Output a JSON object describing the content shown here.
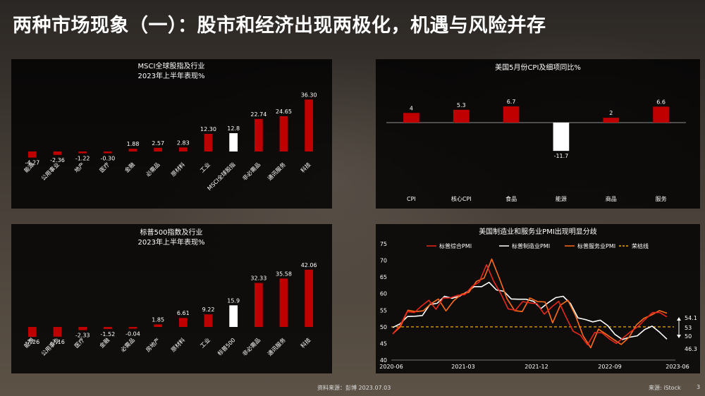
{
  "page": {
    "title": "两种市场现象（一）：股市和经济出现两极化，机遇与风险并存",
    "source_left": "资料来源：彭博 2023.07.03",
    "source_right": "来源: iStock",
    "page_number": "3"
  },
  "colors": {
    "bar": "#c00000",
    "highlight": "#ffffff",
    "series_red": "#e8261c",
    "series_white": "#ffffff",
    "series_orange": "#ff6b1a",
    "threshold": "#f0a800"
  },
  "chart_data": [
    {
      "type": "bar",
      "title": "MSCI全球股指及行业",
      "subtitle": "2023年上半年表现%",
      "categories": [
        "能源",
        "公用事业",
        "地产",
        "医疗",
        "金融",
        "必需品",
        "原材料",
        "工业",
        "MSCI全球股指",
        "非必需品",
        "通讯服务",
        "科技"
      ],
      "values": [
        -4.27,
        -2.36,
        -1.22,
        -0.3,
        1.88,
        2.57,
        2.83,
        12.3,
        12.8,
        22.74,
        24.65,
        36.3
      ],
      "value_labels": [
        "-4.27",
        "-2.36",
        "-1.22",
        "-0.30",
        "1.88",
        "2.57",
        "2.83",
        "12.30",
        "12.8",
        "22.74",
        "24.65",
        "36.30"
      ],
      "highlight_category": "MSCI全球股指"
    },
    {
      "type": "bar",
      "title": "美国5月份CPI及细项同比%",
      "categories": [
        "CPI",
        "核心CPI",
        "食品",
        "能源",
        "商品",
        "服务"
      ],
      "values": [
        4,
        5.3,
        6.7,
        -11.7,
        2,
        6.6
      ],
      "value_labels": [
        "4",
        "5.3",
        "6.7",
        "-11.7",
        "2",
        "6.6"
      ],
      "highlight_category": "能源"
    },
    {
      "type": "bar",
      "title": "标普500指数及行业",
      "subtitle": "2023年上半年表现%",
      "categories": [
        "能源",
        "公用事业",
        "医疗",
        "金融",
        "必需品",
        "房地产",
        "原材料",
        "工业",
        "标普500",
        "非必需品",
        "通讯服务",
        "科技"
      ],
      "values": [
        -7.26,
        -7.16,
        -2.33,
        -1.52,
        -0.04,
        1.85,
        6.61,
        9.22,
        15.9,
        32.33,
        35.58,
        42.06
      ],
      "value_labels": [
        "-7.26",
        "-7.16",
        "-2.33",
        "-1.52",
        "-0.04",
        "1.85",
        "6.61",
        "9.22",
        "15.9",
        "32.33",
        "35.58",
        "42.06"
      ],
      "highlight_category": "标普500"
    },
    {
      "type": "line",
      "title": "美国制造业和服务业PMI出现明显分歧",
      "x_ticks": [
        "2020-06",
        "2021-03",
        "2021-12",
        "2022-09",
        "2023-06"
      ],
      "ylim": [
        40,
        75
      ],
      "y_ticks": [
        40,
        45,
        50,
        55,
        60,
        65,
        70,
        75
      ],
      "series": [
        {
          "name": "标普综合PMI",
          "color": "#e8261c",
          "values": [
            47.9,
            50.3,
            54.6,
            54.3,
            56.3,
            58.0,
            55.3,
            58.7,
            58.7,
            59.5,
            59.7,
            62.2,
            63.5,
            68.7,
            63.7,
            59.9,
            55.4,
            55.0,
            57.6,
            57.2,
            57.0,
            53.8,
            55.9,
            57.7,
            53.0,
            48.7,
            47.5,
            44.6,
            48.3,
            48.2,
            46.4,
            45.0,
            46.8,
            48.6,
            50.1,
            52.3,
            54.3,
            54.3,
            53.0
          ]
        },
        {
          "name": "标普制造业PMI",
          "color": "#ffffff",
          "values": [
            49.8,
            50.9,
            53.1,
            53.2,
            53.4,
            56.7,
            57.1,
            59.2,
            58.6,
            59.2,
            60.5,
            62.1,
            62.1,
            63.4,
            61.1,
            60.7,
            58.4,
            58.3,
            58.3,
            57.7,
            55.5,
            57.3,
            58.8,
            59.2,
            57.0,
            52.7,
            52.2,
            51.5,
            52.0,
            50.4,
            47.7,
            46.2,
            46.9,
            47.3,
            49.2,
            50.2,
            48.4,
            46.3
          ]
        },
        {
          "name": "标普服务业PMI",
          "color": "#ff6b1a",
          "values": [
            47.9,
            50.0,
            55.0,
            54.6,
            54.8,
            56.9,
            58.4,
            54.8,
            57.8,
            59.8,
            60.4,
            63.7,
            64.7,
            70.4,
            64.6,
            58.5,
            54.9,
            54.6,
            58.7,
            57.6,
            57.5,
            51.2,
            56.5,
            58.0,
            53.4,
            47.3,
            43.7,
            49.3,
            47.8,
            46.2,
            44.7,
            46.8,
            50.6,
            52.6,
            53.6,
            54.9,
            54.1
          ]
        },
        {
          "name": "荣枯线",
          "color": "#f0a800",
          "style": "dashed",
          "values": [
            50
          ]
        }
      ],
      "end_labels": [
        "54.1",
        "53",
        "50",
        "46.3"
      ]
    }
  ]
}
